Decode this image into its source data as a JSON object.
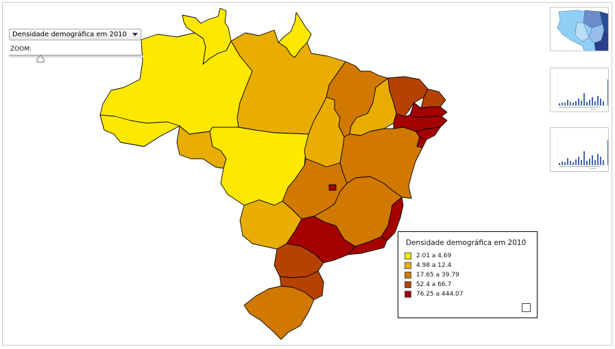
{
  "selector": {
    "value": "Densidade demográfica em 2010"
  },
  "zoom": {
    "label": "ZOOM:",
    "level": 0.2
  },
  "colors": {
    "c1": "#ffe800",
    "c2": "#e8ad00",
    "c3": "#d07800",
    "c4": "#b54200",
    "c5": "#a50000",
    "border": "#000000"
  },
  "map": {
    "regions": [
      {
        "name": "Roraima",
        "class": 1
      },
      {
        "name": "Amapá",
        "class": 1
      },
      {
        "name": "Amazonas",
        "class": 1
      },
      {
        "name": "Pará",
        "class": 2
      },
      {
        "name": "Acre",
        "class": 1
      },
      {
        "name": "Rondônia",
        "class": 2
      },
      {
        "name": "Mato Grosso",
        "class": 1
      },
      {
        "name": "Tocantins",
        "class": 2
      },
      {
        "name": "Maranhão",
        "class": 3
      },
      {
        "name": "Piauí",
        "class": 2
      },
      {
        "name": "Ceará",
        "class": 4
      },
      {
        "name": "Rio Grande do Norte",
        "class": 4
      },
      {
        "name": "Paraíba",
        "class": 5
      },
      {
        "name": "Pernambuco",
        "class": 5
      },
      {
        "name": "Alagoas",
        "class": 5
      },
      {
        "name": "Sergipe",
        "class": 5
      },
      {
        "name": "Bahia",
        "class": 3
      },
      {
        "name": "Mato Grosso do Sul",
        "class": 2
      },
      {
        "name": "Goiás",
        "class": 3
      },
      {
        "name": "Distrito Federal",
        "class": 5
      },
      {
        "name": "Minas Gerais",
        "class": 3
      },
      {
        "name": "Espírito Santo",
        "class": 5
      },
      {
        "name": "São Paulo",
        "class": 5
      },
      {
        "name": "Rio de Janeiro",
        "class": 5
      },
      {
        "name": "Paraná",
        "class": 4
      },
      {
        "name": "Santa Catarina",
        "class": 4
      },
      {
        "name": "Rio Grande do Sul",
        "class": 3
      }
    ]
  },
  "legend": {
    "title": "Densidade demográfica em 2010",
    "items": [
      {
        "label": "2.01 a 4.69",
        "color": "#ffe800"
      },
      {
        "label": "4.98 a 12.4",
        "color": "#e8ad00"
      },
      {
        "label": "17.65 a 39.79",
        "color": "#d07800"
      },
      {
        "label": "52.4 a 66.7",
        "color": "#b54200"
      },
      {
        "label": "76.25 a 444.07",
        "color": "#a50000"
      }
    ]
  },
  "thumbnails": [
    {
      "kind": "map",
      "icon": "map-thumbnail-icon"
    },
    {
      "kind": "bar-chart",
      "icon": "bar-chart-thumbnail-icon"
    },
    {
      "kind": "bar-chart",
      "icon": "bar-chart-thumbnail-icon"
    }
  ]
}
